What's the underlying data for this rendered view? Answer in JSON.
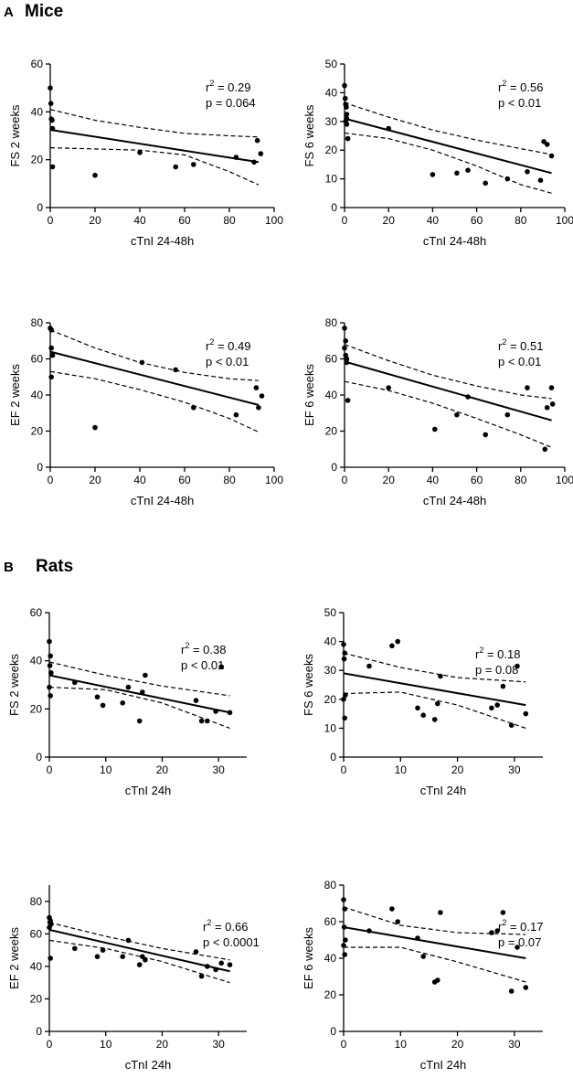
{
  "sections": [
    {
      "letter": "A",
      "title": "Mice"
    },
    {
      "letter": "B",
      "title": "Rats"
    }
  ],
  "colors": {
    "ink": "#000000",
    "background": "#ffffff"
  },
  "chart_data": [
    {
      "type": "scatter",
      "panel": "mice-fs-2-weeks",
      "xlabel": "cTnI 24-48h",
      "ylabel": "FS 2 weeks",
      "xlim": [
        0,
        100
      ],
      "ylim": [
        0,
        60
      ],
      "xticks": [
        0,
        20,
        40,
        60,
        80,
        100
      ],
      "yticks": [
        0,
        20,
        40,
        60
      ],
      "r2": "0.29",
      "p_text": "p = 0.064",
      "points": [
        [
          0,
          50
        ],
        [
          0.3,
          43.5
        ],
        [
          0.5,
          37
        ],
        [
          0.8,
          36.5
        ],
        [
          1,
          33
        ],
        [
          1,
          17
        ],
        [
          20,
          13.5
        ],
        [
          40,
          23
        ],
        [
          56,
          17
        ],
        [
          64,
          18
        ],
        [
          83,
          21
        ],
        [
          91,
          19
        ],
        [
          92.5,
          28
        ],
        [
          94,
          22.5
        ]
      ],
      "fit": [
        0,
        32.5,
        93,
        19
      ],
      "ci_upper": [
        [
          0,
          41
        ],
        [
          20,
          36.5
        ],
        [
          40,
          33.5
        ],
        [
          60,
          31
        ],
        [
          80,
          30
        ],
        [
          93,
          29.5
        ]
      ],
      "ci_lower": [
        [
          0,
          25
        ],
        [
          20,
          24.5
        ],
        [
          40,
          24
        ],
        [
          60,
          22
        ],
        [
          80,
          15
        ],
        [
          93,
          9.5
        ]
      ]
    },
    {
      "type": "scatter",
      "panel": "mice-fs-6-weeks",
      "xlabel": "cTnI 24-48h",
      "ylabel": "FS 6 weeks",
      "xlim": [
        0,
        100
      ],
      "ylim": [
        0,
        50
      ],
      "xticks": [
        0,
        20,
        40,
        60,
        80,
        100
      ],
      "yticks": [
        0,
        10,
        20,
        30,
        40,
        50
      ],
      "r2": "0.56",
      "p_text": "p < 0.01",
      "points": [
        [
          0,
          42.5
        ],
        [
          0.3,
          38
        ],
        [
          0.5,
          36
        ],
        [
          0.8,
          35
        ],
        [
          1,
          32.5
        ],
        [
          1,
          31
        ],
        [
          0.5,
          30
        ],
        [
          1,
          29
        ],
        [
          1.5,
          24
        ],
        [
          20,
          27.5
        ],
        [
          40,
          11.5
        ],
        [
          51,
          12
        ],
        [
          56,
          13
        ],
        [
          64,
          8.5
        ],
        [
          74,
          10
        ],
        [
          83,
          12.5
        ],
        [
          89,
          9.5
        ],
        [
          90.5,
          23
        ],
        [
          92,
          22
        ],
        [
          94,
          18
        ]
      ],
      "fit": [
        0,
        31,
        94,
        12
      ],
      "ci_upper": [
        [
          0,
          36.5
        ],
        [
          20,
          31.5
        ],
        [
          40,
          27
        ],
        [
          60,
          23.5
        ],
        [
          80,
          20.5
        ],
        [
          94,
          18.5
        ]
      ],
      "ci_lower": [
        [
          0,
          26
        ],
        [
          20,
          24
        ],
        [
          40,
          20
        ],
        [
          60,
          14.5
        ],
        [
          80,
          8
        ],
        [
          94,
          5
        ]
      ]
    },
    {
      "type": "scatter",
      "panel": "mice-ef-2-weeks",
      "xlabel": "cTnI 24-48h",
      "ylabel": "EF 2 weeks",
      "xlim": [
        0,
        100
      ],
      "ylim": [
        0,
        80
      ],
      "xticks": [
        0,
        20,
        40,
        60,
        80,
        100
      ],
      "yticks": [
        0,
        20,
        40,
        60,
        80
      ],
      "r2": "0.49",
      "p_text": "p < 0.01",
      "points": [
        [
          0,
          77
        ],
        [
          0.5,
          76
        ],
        [
          0.5,
          66
        ],
        [
          1,
          62
        ],
        [
          0.5,
          50
        ],
        [
          20,
          22
        ],
        [
          41,
          58
        ],
        [
          56,
          54
        ],
        [
          64,
          33
        ],
        [
          83,
          29
        ],
        [
          92,
          44
        ],
        [
          93,
          33
        ],
        [
          94.5,
          39.5
        ]
      ],
      "fit": [
        0,
        64,
        93,
        34.5
      ],
      "ci_upper": [
        [
          0,
          76
        ],
        [
          20,
          66
        ],
        [
          40,
          58
        ],
        [
          60,
          52.5
        ],
        [
          80,
          49
        ],
        [
          93,
          48
        ]
      ],
      "ci_lower": [
        [
          0,
          53
        ],
        [
          20,
          49
        ],
        [
          40,
          43
        ],
        [
          60,
          36
        ],
        [
          80,
          27
        ],
        [
          93,
          19.5
        ]
      ]
    },
    {
      "type": "scatter",
      "panel": "mice-ef-6-weeks",
      "xlabel": "cTnI 24-48h",
      "ylabel": "EF 6 weeks",
      "xlim": [
        0,
        100
      ],
      "ylim": [
        0,
        80
      ],
      "xticks": [
        0,
        20,
        40,
        60,
        80,
        100
      ],
      "yticks": [
        0,
        20,
        40,
        60,
        80
      ],
      "r2": "0.51",
      "p_text": "p < 0.01",
      "points": [
        [
          0,
          77
        ],
        [
          0.5,
          70
        ],
        [
          0,
          66
        ],
        [
          0.5,
          62
        ],
        [
          1,
          60
        ],
        [
          1,
          58
        ],
        [
          1.5,
          37
        ],
        [
          20,
          44
        ],
        [
          41,
          21
        ],
        [
          51,
          29
        ],
        [
          56,
          39
        ],
        [
          64,
          18
        ],
        [
          74,
          29
        ],
        [
          83,
          44
        ],
        [
          91,
          10
        ],
        [
          92,
          33
        ],
        [
          94,
          44
        ],
        [
          94.5,
          35
        ]
      ],
      "fit": [
        0,
        58.5,
        94,
        26
      ],
      "ci_upper": [
        [
          0,
          68
        ],
        [
          20,
          59
        ],
        [
          40,
          51
        ],
        [
          60,
          45
        ],
        [
          80,
          40
        ],
        [
          94,
          38
        ]
      ],
      "ci_lower": [
        [
          0,
          47.5
        ],
        [
          20,
          42.5
        ],
        [
          40,
          35.5
        ],
        [
          60,
          27
        ],
        [
          80,
          18
        ],
        [
          94,
          11
        ]
      ]
    },
    {
      "type": "scatter",
      "panel": "rats-fs-2-weeks",
      "xlabel": "cTnI 24h",
      "ylabel": "FS 2 weeks",
      "xlim": [
        0,
        35
      ],
      "ylim": [
        0,
        60
      ],
      "xticks": [
        0,
        10,
        20,
        30
      ],
      "yticks": [
        0,
        20,
        40,
        60
      ],
      "r2": "0.38",
      "p_text": "p < 0.01",
      "points": [
        [
          0,
          48
        ],
        [
          0.2,
          42
        ],
        [
          0.1,
          38
        ],
        [
          0.3,
          35
        ],
        [
          0,
          29
        ],
        [
          0.2,
          25.5
        ],
        [
          4.5,
          31
        ],
        [
          8.5,
          25
        ],
        [
          9.5,
          21.5
        ],
        [
          13,
          22.5
        ],
        [
          14,
          29
        ],
        [
          16,
          15
        ],
        [
          16.5,
          27
        ],
        [
          17,
          34
        ],
        [
          26,
          23.5
        ],
        [
          27,
          15
        ],
        [
          28,
          15
        ],
        [
          29.5,
          19
        ],
        [
          30.5,
          37.5
        ],
        [
          32,
          18.5
        ]
      ],
      "fit": [
        0,
        34,
        32,
        18.5
      ],
      "ci_upper": [
        [
          0,
          39.5
        ],
        [
          10,
          34
        ],
        [
          20,
          29.5
        ],
        [
          32,
          25.5
        ]
      ],
      "ci_lower": [
        [
          0,
          29
        ],
        [
          10,
          28
        ],
        [
          20,
          22.5
        ],
        [
          32,
          12
        ]
      ]
    },
    {
      "type": "scatter",
      "panel": "rats-fs-6-weeks",
      "xlabel": "cTnI 24h",
      "ylabel": "FS 6 weeks",
      "xlim": [
        0,
        35
      ],
      "ylim": [
        0,
        50
      ],
      "xticks": [
        0,
        10,
        20,
        30
      ],
      "yticks": [
        0,
        10,
        20,
        30,
        40,
        50
      ],
      "r2": "0.18",
      "p_text": "p = 0.08",
      "points": [
        [
          0,
          39
        ],
        [
          0.2,
          36
        ],
        [
          0.1,
          34
        ],
        [
          0.3,
          21.5
        ],
        [
          0,
          20
        ],
        [
          0.2,
          13.5
        ],
        [
          4.5,
          31.5
        ],
        [
          8.5,
          38.5
        ],
        [
          9.5,
          40
        ],
        [
          13,
          17
        ],
        [
          14,
          14.5
        ],
        [
          16,
          13
        ],
        [
          16.5,
          18.5
        ],
        [
          17,
          28
        ],
        [
          26,
          17
        ],
        [
          27,
          18
        ],
        [
          28,
          24.5
        ],
        [
          29.5,
          11
        ],
        [
          30.5,
          31.5
        ],
        [
          32,
          15
        ]
      ],
      "fit": [
        0,
        29,
        32,
        18
      ],
      "ci_upper": [
        [
          0,
          36
        ],
        [
          10,
          31
        ],
        [
          20,
          27.5
        ],
        [
          32,
          26
        ]
      ],
      "ci_lower": [
        [
          0,
          22
        ],
        [
          10,
          22.5
        ],
        [
          20,
          18
        ],
        [
          32,
          10
        ]
      ]
    },
    {
      "type": "scatter",
      "panel": "rats-ef-2-weeks",
      "xlabel": "cTnI 24h",
      "ylabel": "EF 2 weeks",
      "xlim": [
        0,
        35
      ],
      "ylim": [
        0,
        90
      ],
      "xticks": [
        0,
        10,
        20,
        30
      ],
      "yticks": [
        0,
        20,
        40,
        60,
        80
      ],
      "r2": "0.66",
      "p_text": "p < 0.0001",
      "points": [
        [
          0,
          70
        ],
        [
          0.2,
          68
        ],
        [
          0.1,
          67
        ],
        [
          0.3,
          66
        ],
        [
          0,
          64
        ],
        [
          0.2,
          45
        ],
        [
          4.5,
          51
        ],
        [
          8.5,
          46
        ],
        [
          9.5,
          50
        ],
        [
          13,
          46
        ],
        [
          14,
          56
        ],
        [
          16,
          41
        ],
        [
          16.5,
          46
        ],
        [
          17,
          44
        ],
        [
          26,
          49
        ],
        [
          27,
          34
        ],
        [
          28,
          40
        ],
        [
          29.5,
          38
        ],
        [
          30.5,
          42
        ],
        [
          32,
          41
        ]
      ],
      "fit": [
        0,
        62.5,
        32,
        37
      ],
      "ci_upper": [
        [
          0,
          67
        ],
        [
          10,
          58.5
        ],
        [
          20,
          51
        ],
        [
          32,
          44
        ]
      ],
      "ci_lower": [
        [
          0,
          56
        ],
        [
          10,
          51
        ],
        [
          20,
          43
        ],
        [
          32,
          30
        ]
      ]
    },
    {
      "type": "scatter",
      "panel": "rats-ef-6-weeks",
      "xlabel": "cTnI 24h",
      "ylabel": "EF 6 weeks",
      "xlim": [
        0,
        35
      ],
      "ylim": [
        0,
        80
      ],
      "xticks": [
        0,
        10,
        20,
        30
      ],
      "yticks": [
        0,
        20,
        40,
        60,
        80
      ],
      "r2": "0.17",
      "p_text": "p = 0.07",
      "points": [
        [
          0,
          72
        ],
        [
          0.2,
          67
        ],
        [
          0.1,
          57
        ],
        [
          0.3,
          50
        ],
        [
          0,
          47
        ],
        [
          0.2,
          42
        ],
        [
          4.5,
          55
        ],
        [
          8.5,
          67
        ],
        [
          9.5,
          60
        ],
        [
          13,
          51
        ],
        [
          14,
          41
        ],
        [
          16,
          27
        ],
        [
          16.5,
          28
        ],
        [
          17,
          65
        ],
        [
          26,
          54
        ],
        [
          27,
          55
        ],
        [
          28,
          65
        ],
        [
          29.5,
          22
        ],
        [
          30.5,
          46
        ],
        [
          32,
          24
        ]
      ],
      "fit": [
        0,
        57,
        32,
        40
      ],
      "ci_upper": [
        [
          0,
          68
        ],
        [
          10,
          58
        ],
        [
          20,
          54
        ],
        [
          32,
          53
        ]
      ],
      "ci_lower": [
        [
          0,
          46
        ],
        [
          10,
          46
        ],
        [
          20,
          38
        ],
        [
          32,
          27
        ]
      ]
    }
  ]
}
